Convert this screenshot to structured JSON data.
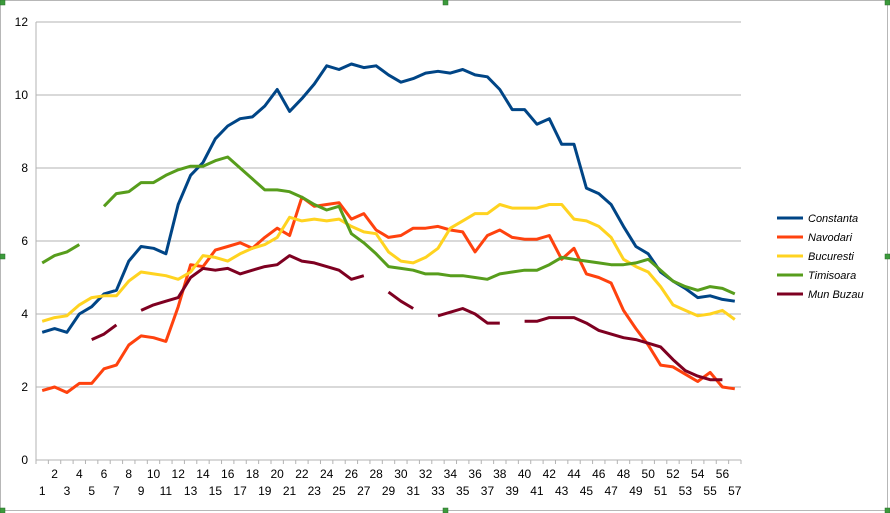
{
  "chart_data": {
    "type": "line",
    "x": [
      1,
      2,
      3,
      4,
      5,
      6,
      7,
      8,
      9,
      10,
      11,
      12,
      13,
      14,
      15,
      16,
      17,
      18,
      19,
      20,
      21,
      22,
      23,
      24,
      25,
      26,
      27,
      28,
      29,
      30,
      31,
      32,
      33,
      34,
      35,
      36,
      37,
      38,
      39,
      40,
      41,
      42,
      43,
      44,
      45,
      46,
      47,
      48,
      49,
      50,
      51,
      52,
      53,
      54,
      55,
      56,
      57
    ],
    "x_tick_labels_even": [
      "2",
      "4",
      "6",
      "8",
      "10",
      "12",
      "14",
      "16",
      "18",
      "20",
      "22",
      "24",
      "26",
      "28",
      "30",
      "32",
      "34",
      "36",
      "38",
      "40",
      "42",
      "44",
      "46",
      "48",
      "50",
      "52",
      "54",
      "56"
    ],
    "x_tick_labels_odd": [
      "1",
      "3",
      "5",
      "7",
      "9",
      "11",
      "13",
      "15",
      "17",
      "19",
      "21",
      "23",
      "25",
      "27",
      "29",
      "31",
      "33",
      "35",
      "37",
      "39",
      "41",
      "43",
      "45",
      "47",
      "49",
      "51",
      "53",
      "55",
      "57"
    ],
    "y_ticks": [
      "0",
      "2",
      "4",
      "6",
      "8",
      "10",
      "12"
    ],
    "ylim": [
      0,
      12
    ],
    "grid": "horizontal",
    "legend_position": "right",
    "series": [
      {
        "name": "Constanta",
        "color": "#004586",
        "values": [
          3.5,
          3.6,
          3.5,
          4.0,
          4.2,
          4.55,
          4.65,
          5.45,
          5.85,
          5.8,
          5.65,
          7.0,
          7.8,
          8.15,
          8.8,
          9.15,
          9.35,
          9.4,
          9.7,
          10.15,
          9.55,
          9.9,
          10.3,
          10.8,
          10.7,
          10.85,
          10.75,
          10.8,
          10.55,
          10.35,
          10.45,
          10.6,
          10.65,
          10.6,
          10.7,
          10.55,
          10.5,
          10.15,
          9.6,
          9.6,
          9.2,
          9.35,
          8.65,
          8.65,
          7.45,
          7.3,
          7.0,
          6.4,
          5.85,
          5.65,
          5.15,
          4.9,
          4.7,
          4.45,
          4.5,
          4.4,
          4.35
        ]
      },
      {
        "name": "Navodari",
        "color": "#ff420e",
        "values": [
          1.9,
          2.0,
          1.85,
          2.1,
          2.1,
          2.5,
          2.6,
          3.15,
          3.4,
          3.35,
          3.25,
          4.2,
          5.35,
          5.3,
          5.75,
          5.85,
          5.95,
          5.8,
          6.1,
          6.35,
          6.15,
          7.2,
          6.95,
          7.0,
          7.05,
          6.6,
          6.75,
          6.3,
          6.1,
          6.15,
          6.35,
          6.35,
          6.4,
          6.3,
          6.25,
          5.7,
          6.15,
          6.3,
          6.1,
          6.05,
          6.05,
          6.15,
          5.5,
          5.8,
          5.1,
          5.0,
          4.85,
          4.1,
          3.6,
          3.15,
          2.6,
          2.55,
          2.35,
          2.15,
          2.4,
          2.0,
          1.95
        ]
      },
      {
        "name": "Bucuresti",
        "color": "#ffd320",
        "values": [
          3.8,
          3.9,
          3.95,
          4.25,
          4.45,
          4.5,
          4.5,
          4.9,
          5.15,
          5.1,
          5.05,
          4.95,
          5.15,
          5.6,
          5.55,
          5.45,
          5.65,
          5.8,
          5.9,
          6.1,
          6.65,
          6.55,
          6.6,
          6.55,
          6.6,
          6.4,
          6.25,
          6.2,
          5.7,
          5.45,
          5.4,
          5.55,
          5.8,
          6.35,
          6.55,
          6.75,
          6.75,
          7.0,
          6.9,
          6.9,
          6.9,
          7.0,
          7.0,
          6.6,
          6.55,
          6.4,
          6.1,
          5.5,
          5.3,
          5.15,
          4.75,
          4.25,
          4.1,
          3.95,
          4.0,
          4.1,
          3.85
        ]
      },
      {
        "name": "Timisoara",
        "color": "#579d1c",
        "values": [
          5.4,
          5.6,
          5.7,
          5.9,
          null,
          6.95,
          7.3,
          7.35,
          7.6,
          7.6,
          7.8,
          7.95,
          8.05,
          8.05,
          8.2,
          8.3,
          8.0,
          7.7,
          7.4,
          7.4,
          7.35,
          7.2,
          7.0,
          6.85,
          6.95,
          6.2,
          5.95,
          5.65,
          5.3,
          5.25,
          5.2,
          5.1,
          5.1,
          5.05,
          5.05,
          5.0,
          4.95,
          5.1,
          5.15,
          5.2,
          5.2,
          5.35,
          5.55,
          5.5,
          5.45,
          5.4,
          5.35,
          5.35,
          5.4,
          5.5,
          5.2,
          4.9,
          4.75,
          4.65,
          4.75,
          4.7,
          4.55
        ]
      },
      {
        "name": "Mun Buzau",
        "color": "#7e0021",
        "values": [
          null,
          null,
          null,
          null,
          3.3,
          3.45,
          3.7,
          null,
          4.1,
          4.25,
          4.35,
          4.45,
          5.0,
          5.25,
          5.2,
          5.25,
          5.1,
          5.2,
          5.3,
          5.35,
          5.6,
          5.45,
          5.4,
          5.3,
          5.2,
          4.95,
          5.05,
          null,
          4.6,
          4.35,
          4.15,
          null,
          3.95,
          4.05,
          4.15,
          4.0,
          3.75,
          3.75,
          null,
          3.8,
          3.8,
          3.9,
          3.9,
          3.9,
          3.75,
          3.55,
          3.45,
          3.35,
          3.3,
          3.2,
          3.1,
          2.75,
          2.45,
          2.3,
          2.2,
          2.2,
          null
        ]
      }
    ]
  }
}
